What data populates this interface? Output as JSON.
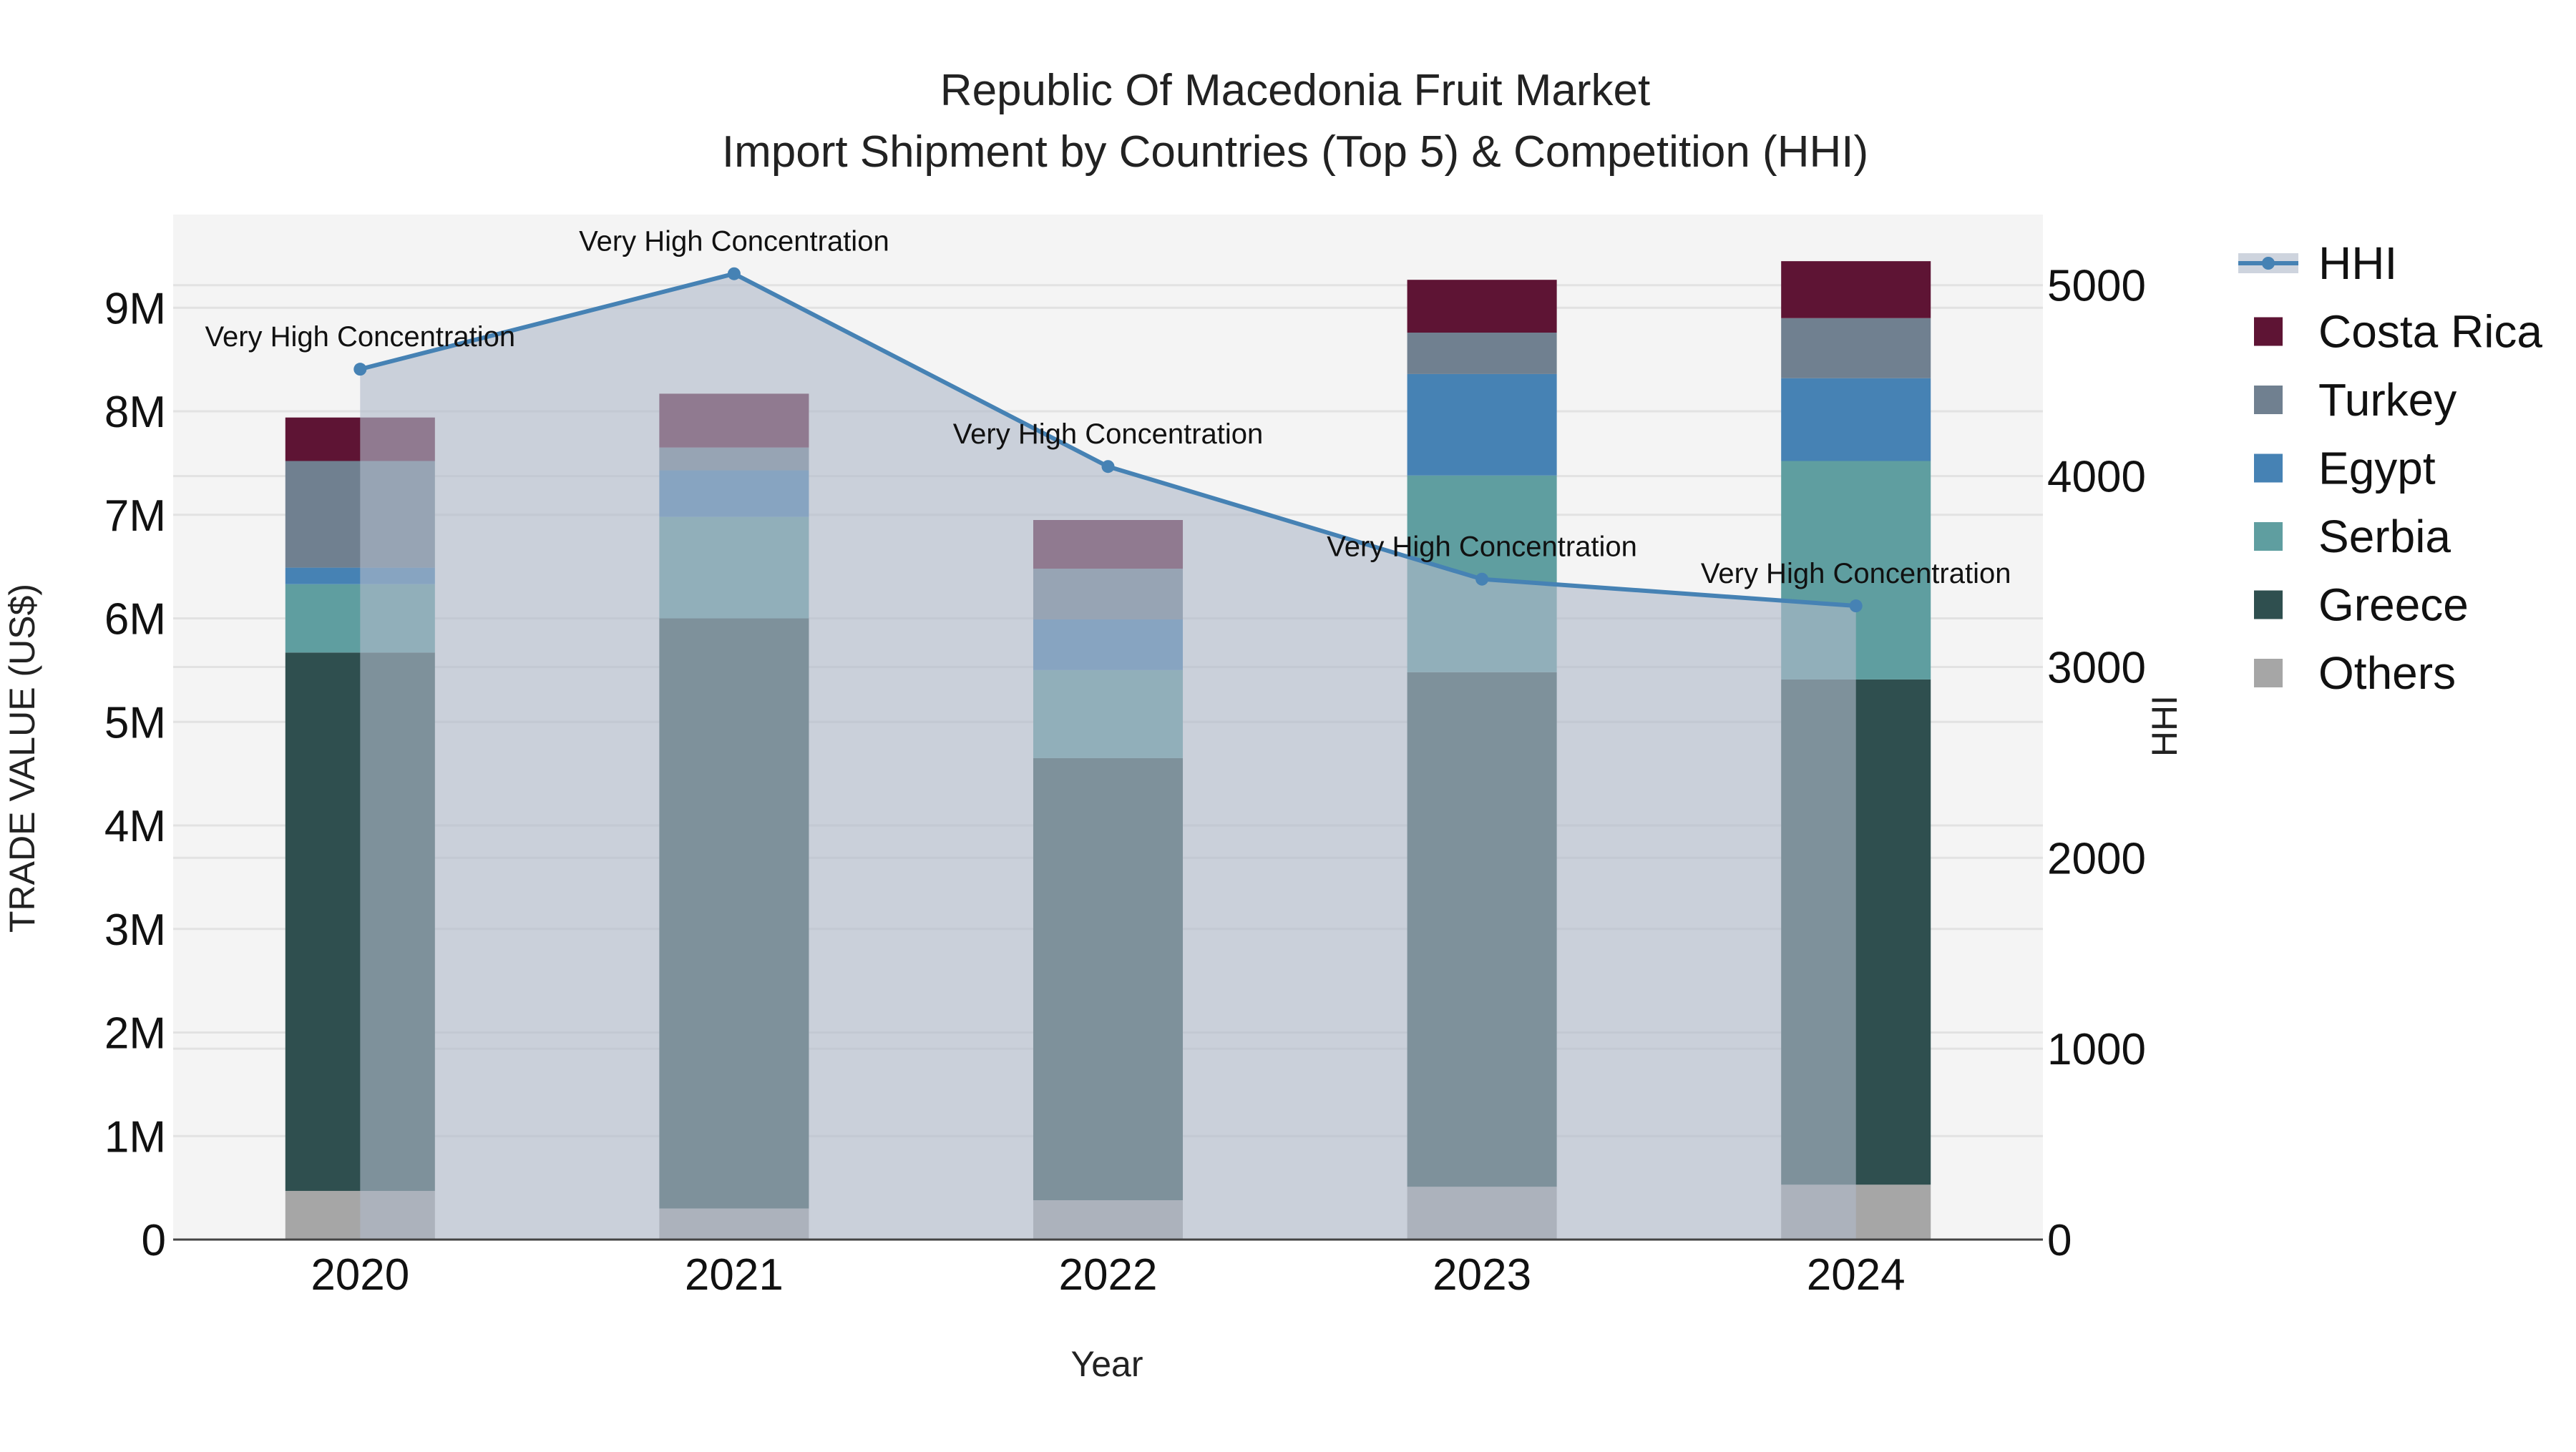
{
  "chart_data": {
    "type": "bar",
    "title_line1": "Republic Of Macedonia Fruit Market",
    "title_line2": "Import Shipment by Countries (Top 5) & Competition (HHI)",
    "xlabel": "Year",
    "ylabel": "TRADE VALUE (US$)",
    "y2label": "HHI",
    "categories": [
      "2020",
      "2021",
      "2022",
      "2023",
      "2024"
    ],
    "ylim": [
      0,
      9900000
    ],
    "y2lim": [
      0,
      5370
    ],
    "y_ticks": [
      {
        "value": 0,
        "label": "0"
      },
      {
        "value": 1000000,
        "label": "1M"
      },
      {
        "value": 2000000,
        "label": "2M"
      },
      {
        "value": 3000000,
        "label": "3M"
      },
      {
        "value": 4000000,
        "label": "4M"
      },
      {
        "value": 5000000,
        "label": "5M"
      },
      {
        "value": 6000000,
        "label": "6M"
      },
      {
        "value": 7000000,
        "label": "7M"
      },
      {
        "value": 8000000,
        "label": "8M"
      },
      {
        "value": 9000000,
        "label": "9M"
      }
    ],
    "y2_ticks": [
      {
        "value": 0,
        "label": "0"
      },
      {
        "value": 1000,
        "label": "1000"
      },
      {
        "value": 2000,
        "label": "2000"
      },
      {
        "value": 3000,
        "label": "3000"
      },
      {
        "value": 4000,
        "label": "4000"
      },
      {
        "value": 5000,
        "label": "5000"
      }
    ],
    "series": [
      {
        "name": "Others",
        "color": "#a6a6a6",
        "values": [
          470000,
          300000,
          380000,
          510000,
          530000
        ]
      },
      {
        "name": "Greece",
        "color": "#2f4f4f",
        "values": [
          5200000,
          5700000,
          4270000,
          4970000,
          4880000
        ]
      },
      {
        "name": "Serbia",
        "color": "#5f9ea0",
        "values": [
          660000,
          980000,
          850000,
          1900000,
          2110000
        ]
      },
      {
        "name": "Egypt",
        "color": "#4682b4",
        "values": [
          160000,
          450000,
          490000,
          980000,
          800000
        ]
      },
      {
        "name": "Turkey",
        "color": "#708090",
        "values": [
          1030000,
          220000,
          490000,
          400000,
          580000
        ]
      },
      {
        "name": "Costa Rica",
        "color": "#5e1434",
        "values": [
          420000,
          520000,
          470000,
          510000,
          550000
        ]
      }
    ],
    "hhi": {
      "name": "HHI",
      "color": "#4682b4",
      "fill": "rgba(176,186,201,0.62)",
      "values": [
        4560,
        5060,
        4050,
        3460,
        3320
      ],
      "annotations": [
        "Very High Concentration",
        "Very High Concentration",
        "Very High Concentration",
        "Very High Concentration",
        "Very High Concentration"
      ]
    },
    "legend": [
      "HHI",
      "Costa Rica",
      "Turkey",
      "Egypt",
      "Serbia",
      "Greece",
      "Others"
    ],
    "legend_position": "right",
    "grid": true
  }
}
